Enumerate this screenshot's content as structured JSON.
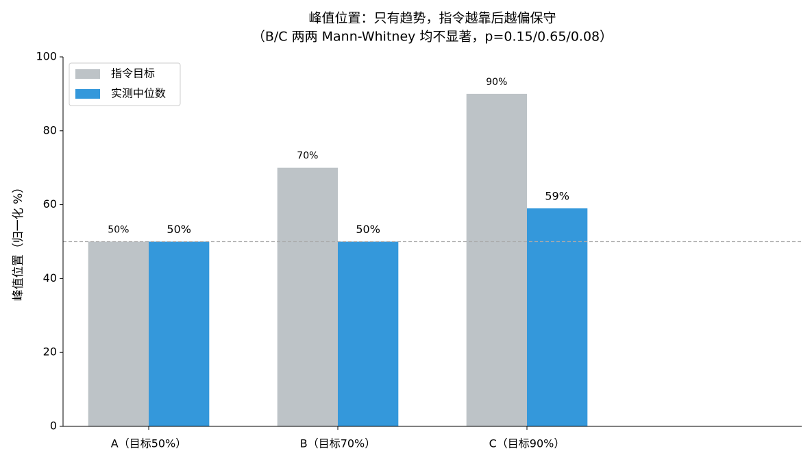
{
  "chart_data": {
    "type": "bar",
    "title": "峰值位置：只有趋势，指令越靠后越偏保守",
    "subtitle": "（B/C 两两 Mann-Whitney 均不显著，p=0.15/0.65/0.08）",
    "y_label": "峰值位置（归一化 %）",
    "categories": [
      "A（目标50%）",
      "B（目标70%）",
      "C（目标90%）"
    ],
    "series": [
      {
        "name": "指令目标",
        "color": "#bdc3c7",
        "label_color": "#7f8c8d",
        "values": [
          50,
          70,
          90
        ],
        "value_labels": [
          "50%",
          "70%",
          "90%"
        ]
      },
      {
        "name": "实测中位数",
        "color": "#3498db",
        "label_color": "#21618c",
        "values": [
          50,
          50,
          59
        ],
        "value_labels": [
          "50%",
          "50%",
          "59%"
        ]
      }
    ],
    "reference_line": 50,
    "ylim": [
      0,
      100
    ],
    "yticks": [
      0,
      20,
      40,
      60,
      80,
      100
    ],
    "legend": "upper-left"
  }
}
